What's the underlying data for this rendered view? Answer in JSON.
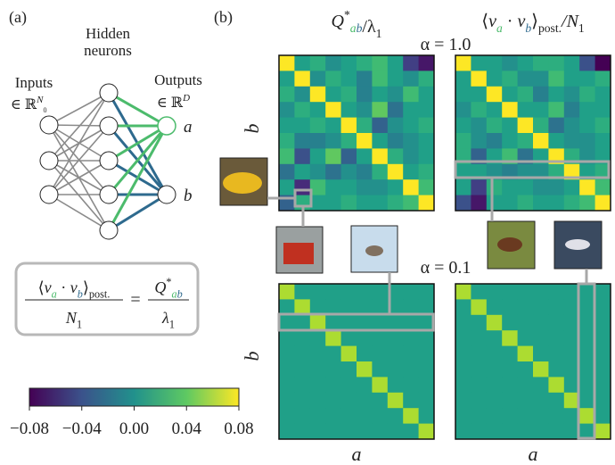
{
  "panel_a": {
    "label": "(a)",
    "hidden": [
      "Hidden",
      "neurons"
    ],
    "inputs": [
      "Inputs",
      "∈ ℝ",
      "N",
      "0"
    ],
    "outputs": [
      "Outputs",
      "∈ ℝ",
      "D"
    ],
    "node_a": "a",
    "node_b": "b",
    "equation": {
      "lhs_num": [
        "⟨",
        "v",
        "a",
        " · ",
        "v",
        "b",
        "⟩",
        "post."
      ],
      "lhs_den": [
        "N",
        "1"
      ],
      "eq": "=",
      "rhs_num": [
        "Q",
        "*",
        "a",
        "b"
      ],
      "rhs_den": [
        "λ",
        "1"
      ]
    }
  },
  "colorbar": {
    "lim": [
      -0.08,
      0.08
    ],
    "ticks": [
      {
        "value": -0.08,
        "label": "−0.08"
      },
      {
        "value": -0.04,
        "label": "−0.04"
      },
      {
        "value": 0,
        "label": "0.00"
      },
      0.04,
      0.08
    ]
  },
  "panel_b": {
    "label": "(b)",
    "col_headers": [
      [
        "Q",
        "*",
        "a",
        "b",
        "/λ",
        "1"
      ],
      [
        "⟨",
        "v",
        "a",
        " · ",
        "v",
        "b",
        "⟩",
        "post.",
        "/N",
        "1"
      ]
    ],
    "row_titles": [
      "α = 1.0",
      "α = 0.1"
    ],
    "y_label": "b",
    "x_label": "a",
    "heatmaps": [
      [
        [
          0.08,
          0.01,
          0.02,
          0.0,
          0.01,
          0.02,
          0.03,
          0.01,
          -0.05,
          -0.07
        ],
        [
          0.01,
          0.08,
          0.0,
          0.02,
          0.01,
          -0.01,
          0.03,
          0.01,
          0.0,
          0.02
        ],
        [
          0.02,
          0.0,
          0.08,
          0.01,
          0.02,
          -0.01,
          0.01,
          0.0,
          0.03,
          0.01
        ],
        [
          0.0,
          0.02,
          0.01,
          0.08,
          0.01,
          0.0,
          0.04,
          -0.02,
          0.01,
          0.01
        ],
        [
          0.01,
          0.01,
          0.02,
          0.01,
          0.08,
          0.02,
          -0.03,
          0.0,
          0.01,
          0.02
        ],
        [
          0.02,
          -0.01,
          -0.01,
          0.0,
          0.02,
          0.08,
          0.01,
          -0.01,
          0.0,
          0.01
        ],
        [
          0.03,
          -0.04,
          0.01,
          0.04,
          -0.03,
          0.01,
          0.08,
          0.02,
          0.0,
          0.01
        ],
        [
          -0.02,
          0.01,
          0.0,
          -0.02,
          0.0,
          -0.01,
          0.02,
          0.08,
          0.01,
          0.02
        ],
        [
          0.01,
          -0.06,
          0.03,
          0.01,
          0.01,
          0.0,
          0.0,
          0.01,
          0.08,
          0.03
        ],
        [
          -0.03,
          0.02,
          0.01,
          0.01,
          0.02,
          0.01,
          0.01,
          0.02,
          0.03,
          0.08
        ]
      ],
      [
        [
          0.08,
          0.01,
          0.01,
          0.0,
          0.01,
          0.02,
          0.02,
          0.01,
          -0.04,
          -0.08
        ],
        [
          0.01,
          0.08,
          0.01,
          0.02,
          0.0,
          0.0,
          0.03,
          0.01,
          0.01,
          0.02
        ],
        [
          0.01,
          0.01,
          0.08,
          0.01,
          0.02,
          -0.01,
          0.01,
          0.0,
          0.02,
          0.01
        ],
        [
          0.0,
          0.02,
          0.01,
          0.08,
          0.01,
          0.01,
          0.03,
          -0.01,
          0.01,
          0.01
        ],
        [
          0.01,
          0.0,
          0.02,
          0.01,
          0.08,
          0.02,
          -0.02,
          0.0,
          0.01,
          0.02
        ],
        [
          0.02,
          0.0,
          -0.01,
          0.01,
          0.02,
          0.08,
          0.01,
          0.0,
          0.0,
          0.01
        ],
        [
          0.02,
          -0.03,
          0.01,
          0.03,
          -0.02,
          0.01,
          0.08,
          0.02,
          0.0,
          0.01
        ],
        [
          0.01,
          0.01,
          0.0,
          -0.01,
          0.0,
          0.0,
          0.02,
          0.08,
          0.01,
          0.02
        ],
        [
          0.01,
          -0.05,
          0.02,
          0.01,
          0.01,
          0.0,
          0.0,
          0.01,
          0.08,
          0.03
        ],
        [
          -0.04,
          -0.07,
          0.01,
          0.01,
          0.02,
          0.01,
          0.01,
          0.02,
          0.03,
          0.08
        ]
      ],
      [
        [
          0.06,
          0.01,
          0.01,
          0.01,
          0.01,
          0.01,
          0.01,
          0.01,
          0.01,
          0.01
        ],
        [
          0.01,
          0.06,
          0.01,
          0.01,
          0.01,
          0.01,
          0.01,
          0.01,
          0.01,
          0.01
        ],
        [
          0.01,
          0.01,
          0.06,
          0.01,
          0.01,
          0.01,
          0.01,
          0.01,
          0.01,
          0.01
        ],
        [
          0.01,
          0.01,
          0.01,
          0.06,
          0.01,
          0.01,
          0.01,
          0.01,
          0.01,
          0.01
        ],
        [
          0.01,
          0.01,
          0.01,
          0.01,
          0.06,
          0.01,
          0.01,
          0.01,
          0.01,
          0.01
        ],
        [
          0.01,
          0.01,
          0.01,
          0.01,
          0.01,
          0.06,
          0.01,
          0.01,
          0.01,
          0.01
        ],
        [
          0.01,
          0.01,
          0.01,
          0.01,
          0.01,
          0.01,
          0.06,
          0.01,
          0.01,
          0.01
        ],
        [
          0.01,
          0.01,
          0.01,
          0.01,
          0.01,
          0.01,
          0.01,
          0.06,
          0.01,
          0.01
        ],
        [
          0.01,
          0.01,
          0.01,
          0.01,
          0.01,
          0.01,
          0.01,
          0.01,
          0.06,
          0.01
        ],
        [
          0.01,
          0.01,
          0.01,
          0.01,
          0.01,
          0.01,
          0.01,
          0.01,
          0.01,
          0.06
        ]
      ],
      [
        [
          0.06,
          0.01,
          0.01,
          0.01,
          0.01,
          0.01,
          0.01,
          0.01,
          0.01,
          0.01
        ],
        [
          0.01,
          0.06,
          0.01,
          0.01,
          0.01,
          0.01,
          0.01,
          0.01,
          0.01,
          0.01
        ],
        [
          0.01,
          0.01,
          0.06,
          0.01,
          0.01,
          0.01,
          0.01,
          0.01,
          0.01,
          0.01
        ],
        [
          0.01,
          0.01,
          0.01,
          0.06,
          0.01,
          0.01,
          0.01,
          0.01,
          0.01,
          0.01
        ],
        [
          0.01,
          0.01,
          0.01,
          0.01,
          0.06,
          0.01,
          0.01,
          0.01,
          0.01,
          0.01
        ],
        [
          0.01,
          0.01,
          0.01,
          0.01,
          0.01,
          0.06,
          0.01,
          0.01,
          0.01,
          0.01
        ],
        [
          0.01,
          0.01,
          0.01,
          0.01,
          0.01,
          0.01,
          0.06,
          0.01,
          0.01,
          0.01
        ],
        [
          0.01,
          0.01,
          0.01,
          0.01,
          0.01,
          0.01,
          0.01,
          0.06,
          0.01,
          0.01
        ],
        [
          0.01,
          0.01,
          0.01,
          0.01,
          0.01,
          0.01,
          0.01,
          0.01,
          0.06,
          0.01
        ],
        [
          0.01,
          0.01,
          0.01,
          0.01,
          0.01,
          0.01,
          0.01,
          0.01,
          0.01,
          0.06
        ]
      ]
    ]
  }
}
